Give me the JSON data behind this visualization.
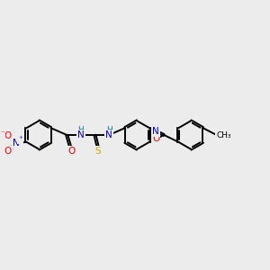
{
  "bg_color": "#ececec",
  "bond_color": "#000000",
  "bond_width": 1.4,
  "dbo": 0.035,
  "atom_colors": {
    "N": "#0000cc",
    "O": "#ff0000",
    "S": "#ccaa00",
    "C": "#000000",
    "H": "#008080"
  },
  "fs": 7.5,
  "fs_small": 6.5,
  "fs_ch3": 6.5
}
